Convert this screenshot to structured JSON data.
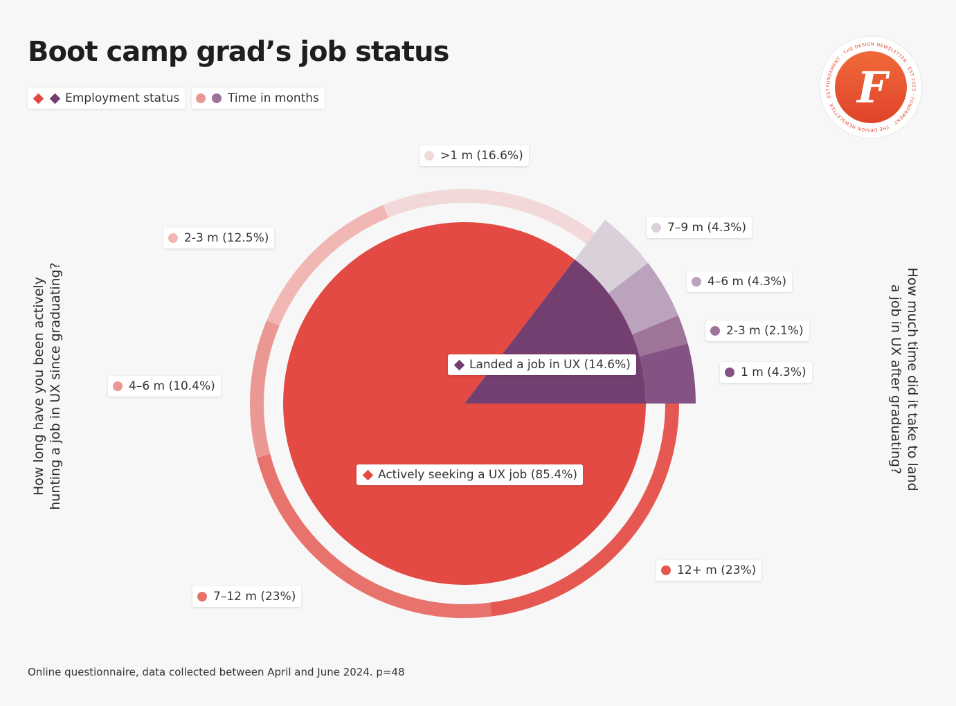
{
  "title": "Boot camp grad’s job status",
  "legend": [
    {
      "label": "Employment status",
      "colors": [
        "#e24a43",
        "#733e70"
      ],
      "shape": "diamond"
    },
    {
      "label": "Time in months",
      "colors": [
        "#e89792",
        "#9d7399"
      ],
      "shape": "dot"
    }
  ],
  "left_question": "How long have you been actively hunting a job in UX since graduating?",
  "right_question": "How much time did it take to land a job in UX after graduating?",
  "footnote": "Online questionnaire, data collected between April and June 2024. p=48",
  "badge": {
    "ring_text": "FUNDAMENT · THE DESIGN NEWSLETTER · EST 2023 · FUNDAMENT · THE DESIGN NEWSLETTER · EST 2023 ·",
    "letter": "F"
  },
  "chart_data": {
    "type": "pie",
    "inner": {
      "name": "Employment status",
      "slices": [
        {
          "label": "Landed a job in UX (14.6%)",
          "value": 14.6,
          "color": "#733e70"
        },
        {
          "label": "Actively seeking a UX job (85.4%)",
          "value": 85.4,
          "color": "#e24a43"
        }
      ]
    },
    "outer_seeking": {
      "question": "How long have you been actively hunting a job in UX since graduating?",
      "slices": [
        {
          "label": "12+ m (23%)",
          "value": 23,
          "color": "#e55852"
        },
        {
          "label": "7–12 m (23%)",
          "value": 23,
          "color": "#e8736d"
        },
        {
          "label": "4–6 m (10.4%)",
          "value": 10.4,
          "color": "#eb9894"
        },
        {
          "label": "2-3 m (12.5%)",
          "value": 12.5,
          "color": "#f0b7b4"
        },
        {
          "label": ">1 m (16.6%)",
          "value": 16.6,
          "color": "#f2d8d8"
        }
      ]
    },
    "outer_landed": {
      "question": "How much time did it take to land a job in UX after graduating?",
      "slices": [
        {
          "label": "1 m (4.3%)",
          "value": 4.3,
          "color": "#855383"
        },
        {
          "label": "2-3 m (2.1%)",
          "value": 2.1,
          "color": "#9e7599"
        },
        {
          "label": "4–6 m (4.3%)",
          "value": 4.3,
          "color": "#bba3bb"
        },
        {
          "label": "7–9 m (4.3%)",
          "value": 4.3,
          "color": "#d9d0da"
        }
      ]
    }
  }
}
